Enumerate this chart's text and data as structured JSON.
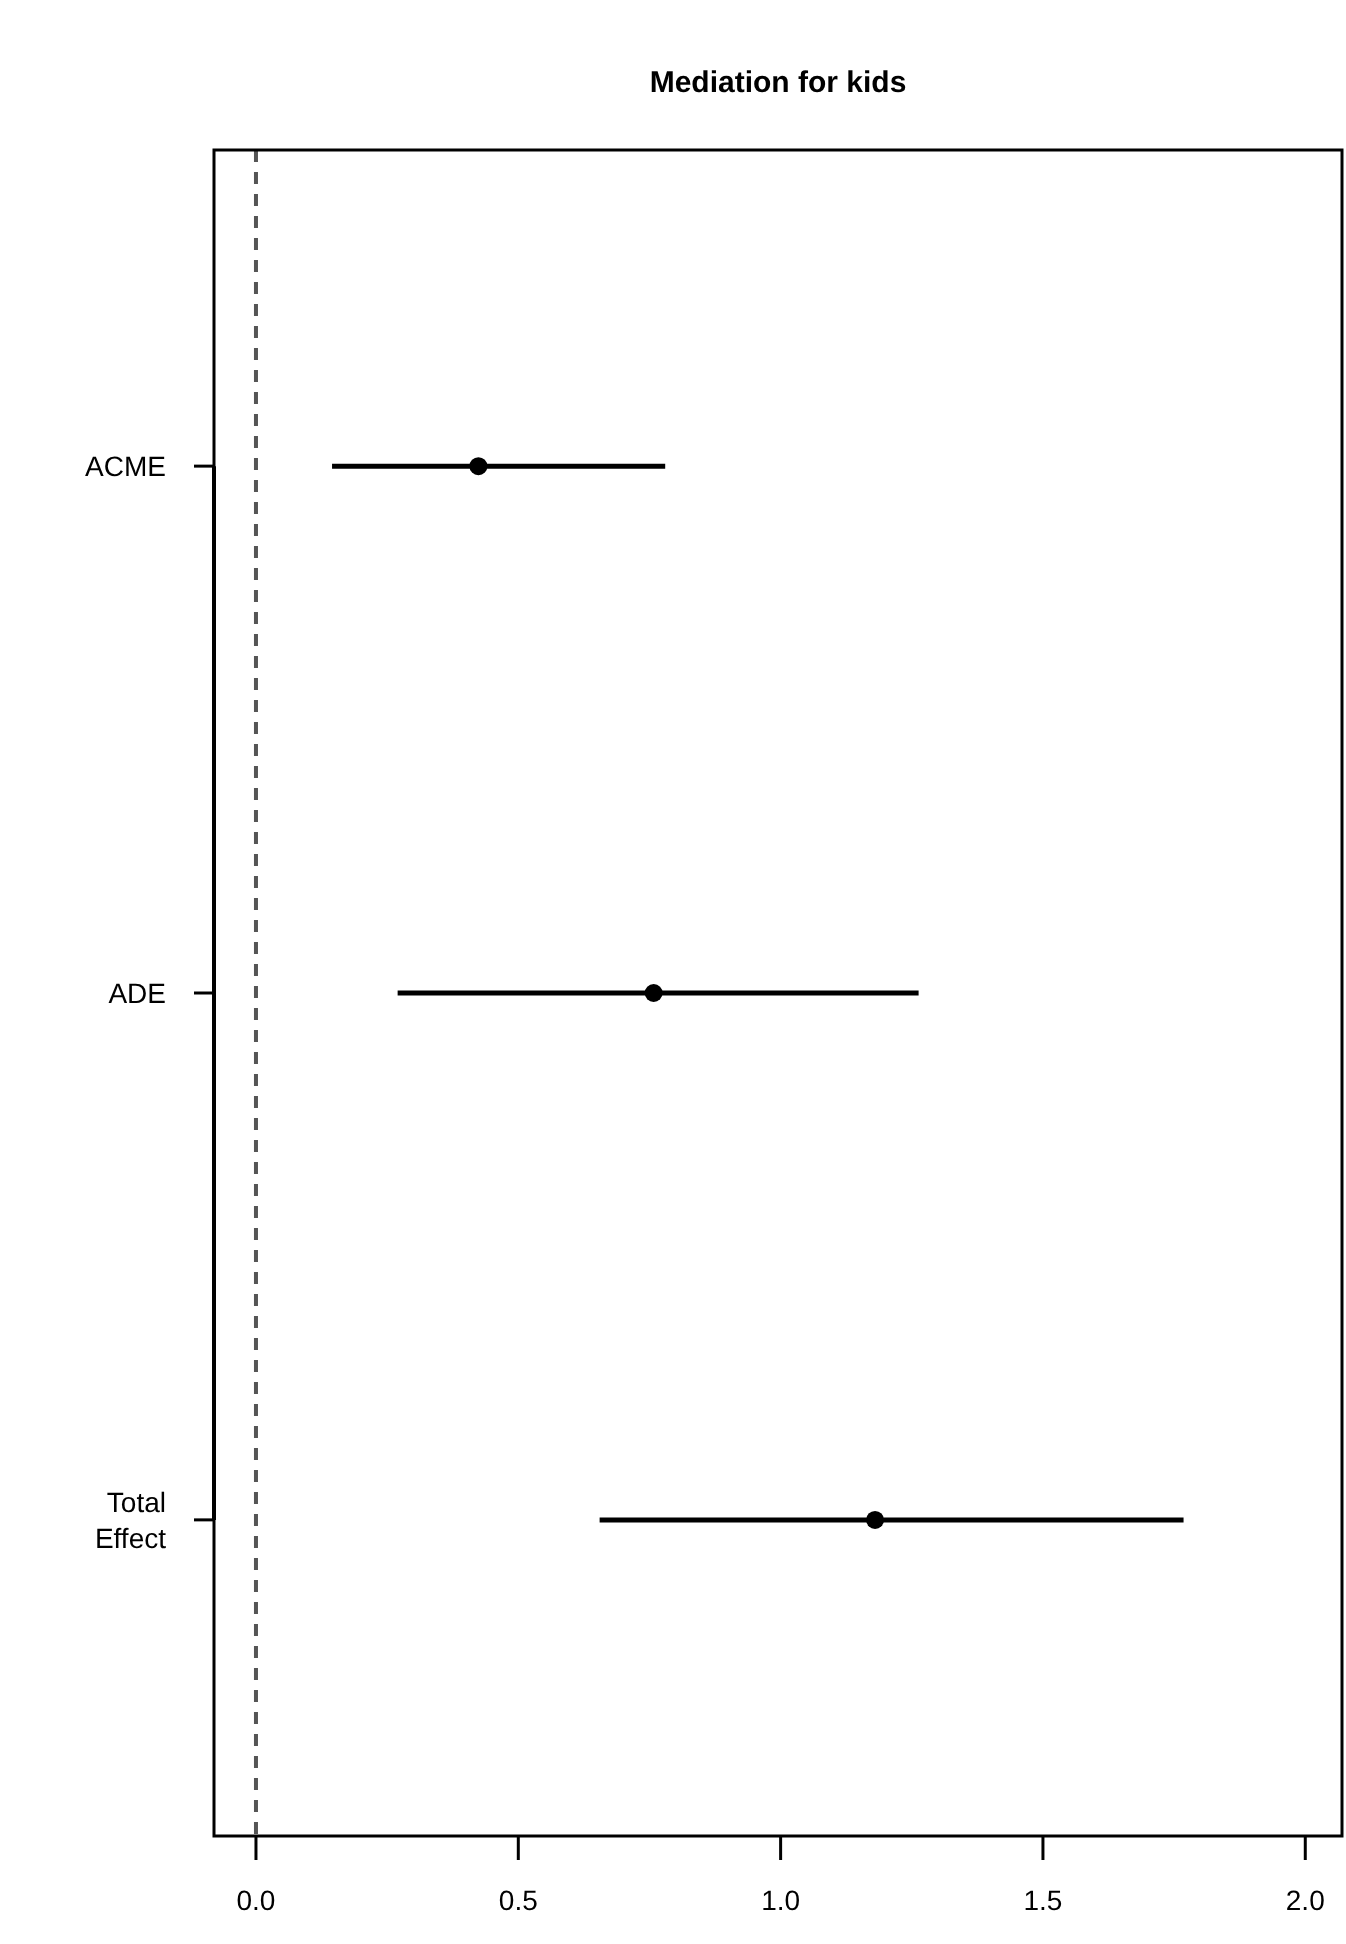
{
  "chart_data": {
    "type": "scatter",
    "orientation": "horizontal",
    "title": "Mediation for kids",
    "categories": [
      "ACME",
      "ADE",
      "Total\nEffect"
    ],
    "series": [
      {
        "color": "#000000",
        "values": [
          0.424,
          0.758,
          1.18
        ],
        "errors": [
          [
            0.145,
            0.78
          ],
          [
            0.27,
            1.263
          ],
          [
            0.655,
            1.768
          ]
        ]
      }
    ],
    "xlim": [
      -0.08,
      2.07
    ],
    "xticks": [
      {
        "value": 0,
        "label": "0.0"
      },
      {
        "value": 0.5,
        "label": "0.5"
      },
      {
        "value": 1,
        "label": "1.0"
      },
      {
        "value": 1.5,
        "label": "1.5"
      },
      {
        "value": 2,
        "label": "2.0"
      }
    ],
    "ref_lines": [
      {
        "axis": "x",
        "value": 0,
        "color": "#555555",
        "line_style": "dashed"
      }
    ],
    "marker": "circle",
    "grid": false
  }
}
